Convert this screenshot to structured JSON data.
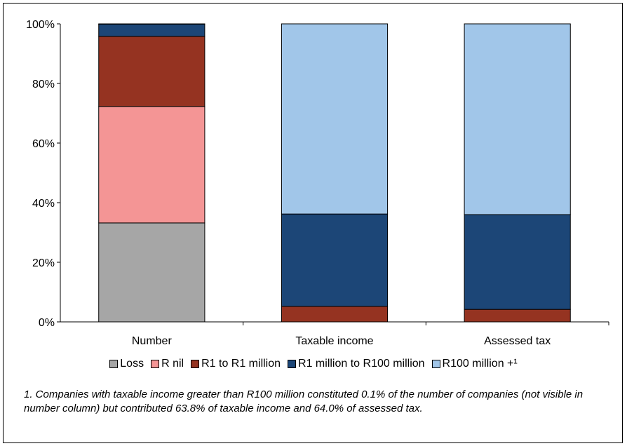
{
  "chart_data": {
    "type": "bar",
    "stacked": true,
    "normalized": true,
    "categories": [
      "Number",
      "Taxable income",
      "Assessed tax"
    ],
    "series": [
      {
        "name": "Loss",
        "color": "#a6a6a6",
        "values": [
          33.2,
          0,
          0
        ]
      },
      {
        "name": "R nil",
        "color": "#f49595",
        "values": [
          39.1,
          0,
          0
        ]
      },
      {
        "name": "R1 to R1 million",
        "color": "#953321",
        "values": [
          23.5,
          5.2,
          4.2
        ]
      },
      {
        "name": "R1 million to R100 million",
        "color": "#1c4677",
        "values": [
          4.1,
          31.0,
          31.8
        ]
      },
      {
        "name": "R100 million +¹",
        "color": "#a1c6e9",
        "values": [
          0.1,
          63.8,
          64.0
        ]
      }
    ],
    "y_ticks": [
      "0%",
      "20%",
      "40%",
      "60%",
      "80%",
      "100%"
    ],
    "ylim": [
      0,
      100
    ],
    "grid": false,
    "legend_position": "bottom"
  },
  "footnote": "1. Companies with taxable income greater than R100 million constituted 0.1% of the number of companies (not visible in number column) but contributed 63.8% of taxable income and 64.0% of assessed tax."
}
